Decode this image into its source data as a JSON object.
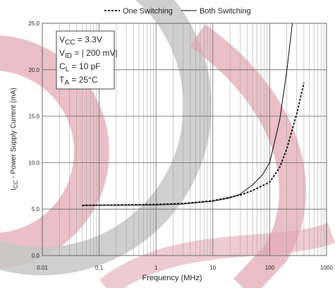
{
  "chart_data": {
    "type": "line",
    "xlabel": "Frequency (MHz)",
    "ylabel": {
      "symbol": "I",
      "sub": "CC",
      "text": " - Power Supply Current (mA)"
    },
    "xscale": "log",
    "xlim": [
      0.01,
      1000
    ],
    "xticks": [
      0.01,
      0.1,
      1,
      10,
      100,
      1000
    ],
    "ylim": [
      0,
      25
    ],
    "yticks": [
      {
        "value": 0,
        "label": "0.0"
      },
      {
        "value": 5,
        "label": "5.0"
      },
      {
        "value": 10,
        "label": "10.0"
      },
      {
        "value": 15,
        "label": "15.0"
      },
      {
        "value": 20,
        "label": "20.0"
      },
      {
        "value": 25,
        "label": "25.0"
      }
    ],
    "grid": true,
    "legend": "top",
    "series": [
      {
        "name": "One Switching",
        "color": "#000000",
        "dashed": true,
        "x": [
          0.05,
          0.2,
          1,
          3,
          10,
          30,
          50,
          100,
          150,
          200,
          300,
          400
        ],
        "values": [
          5.4,
          5.45,
          5.5,
          5.6,
          5.9,
          6.5,
          7.0,
          7.9,
          9.5,
          11.5,
          15.3,
          18.6
        ]
      },
      {
        "name": "Both Switching",
        "color": "#000000",
        "dashed": false,
        "x": [
          0.05,
          0.2,
          1,
          3,
          10,
          20,
          30,
          50,
          75,
          100,
          150,
          200,
          250
        ],
        "values": [
          5.4,
          5.4,
          5.45,
          5.55,
          5.85,
          6.2,
          6.6,
          7.6,
          8.7,
          10.0,
          14.6,
          19.9,
          25.0
        ]
      }
    ],
    "annotation": [
      {
        "symbol": "V",
        "sub": "CC",
        "text": " = 3.3V"
      },
      {
        "symbol": "V",
        "sub": "ID",
        "text": " = | 200 mV|"
      },
      {
        "symbol": "C",
        "sub": "L",
        "text": " = 10 pF"
      },
      {
        "symbol": "T",
        "sub": "A",
        "text": " = 25°C"
      }
    ]
  }
}
